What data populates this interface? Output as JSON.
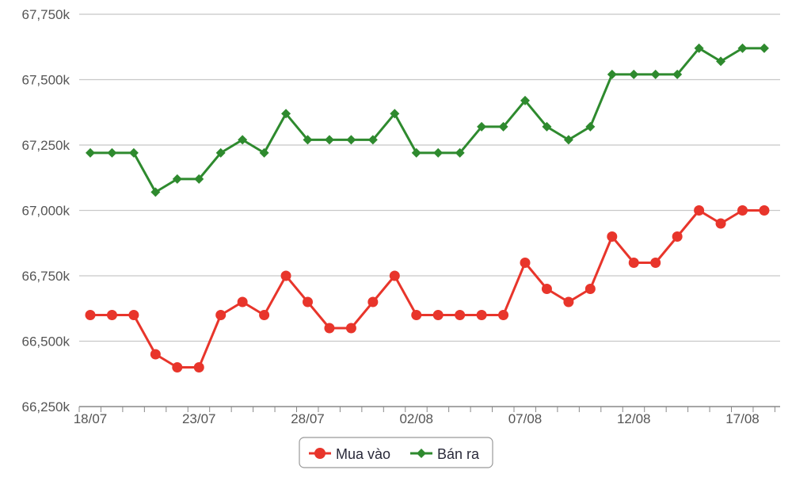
{
  "chart_data": {
    "type": "line",
    "x": [
      "18/07",
      "19/07",
      "20/07",
      "21/07",
      "22/07",
      "23/07",
      "24/07",
      "25/07",
      "26/07",
      "27/07",
      "28/07",
      "29/07",
      "30/07",
      "31/07",
      "01/08",
      "02/08",
      "03/08",
      "04/08",
      "05/08",
      "06/08",
      "07/08",
      "08/08",
      "09/08",
      "10/08",
      "11/08",
      "12/08",
      "13/08",
      "14/08",
      "15/08",
      "16/08",
      "17/08",
      "18/08"
    ],
    "x_tick_labels": [
      "18/07",
      "23/07",
      "28/07",
      "02/08",
      "07/08",
      "12/08",
      "17/08"
    ],
    "y_tick_labels": [
      "66,250k",
      "66,500k",
      "66,750k",
      "67,000k",
      "67,250k",
      "67,500k",
      "67,750k"
    ],
    "y_ticks": [
      66250,
      66500,
      66750,
      67000,
      67250,
      67500,
      67750
    ],
    "ylim": [
      66250,
      67750
    ],
    "grid": true,
    "legend_position": "bottom-center",
    "series": [
      {
        "name": "Mua vào",
        "color": "#e8352b",
        "marker": "circle",
        "values": [
          66600,
          66600,
          66600,
          66450,
          66400,
          66400,
          66600,
          66650,
          66600,
          66750,
          66650,
          66550,
          66550,
          66650,
          66750,
          66600,
          66600,
          66600,
          66600,
          66600,
          66800,
          66700,
          66650,
          66700,
          66900,
          66800,
          66800,
          66900,
          67000,
          66950,
          67000,
          67000
        ]
      },
      {
        "name": "Bán ra",
        "color": "#2e8a2e",
        "marker": "diamond",
        "values": [
          67220,
          67220,
          67220,
          67070,
          67120,
          67120,
          67220,
          67270,
          67220,
          67370,
          67270,
          67270,
          67270,
          67270,
          67370,
          67220,
          67220,
          67220,
          67320,
          67320,
          67420,
          67320,
          67270,
          67320,
          67520,
          67520,
          67520,
          67520,
          67620,
          67570,
          67620,
          67620
        ]
      }
    ]
  }
}
